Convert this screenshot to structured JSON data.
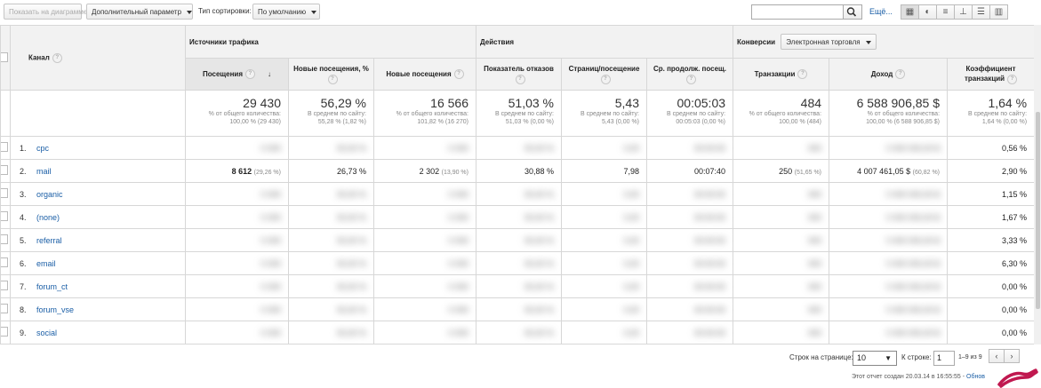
{
  "toolbar": {
    "plot_rows": "Показать на диаграмме",
    "secondary_dimension": "Дополнительный параметр",
    "sort_type_label": "Тип сортировки:",
    "sort_type_value": "По умолчанию",
    "more": "Ещё...",
    "view_icons": [
      "table-view-icon",
      "pie-view-icon",
      "performance-view-icon",
      "comparison-view-icon",
      "term-cloud-view-icon",
      "pivot-view-icon"
    ]
  },
  "groups": {
    "traffic": "Источники трафика",
    "actions": "Действия",
    "conversions": "Конверсии",
    "conversion_select": "Электронная торговля"
  },
  "columns": {
    "channel": "Канал",
    "sessions": "Посещения",
    "new_sessions_pct": "Новые посещения, %",
    "new_sessions": "Новые посещения",
    "bounce": "Показатель отказов",
    "pages": "Страниц/посещение",
    "duration": "Ср. продолж. посещ.",
    "transactions": "Транзакции",
    "revenue": "Доход",
    "conv_rate": "Коэффициент транзакций"
  },
  "totals": {
    "sessions": {
      "big": "29 430",
      "s1": "% от общего количества:",
      "s2": "100,00 % (29 430)"
    },
    "new_sessions_pct": {
      "big": "56,29 %",
      "s1": "В среднем по сайту:",
      "s2": "55,28 % (1,82 %)"
    },
    "new_sessions": {
      "big": "16 566",
      "s1": "% от общего количества:",
      "s2": "101,82 % (16 270)"
    },
    "bounce": {
      "big": "51,03 %",
      "s1": "В среднем по сайту:",
      "s2": "51,03 % (0,00 %)"
    },
    "pages": {
      "big": "5,43",
      "s1": "В среднем по сайту:",
      "s2": "5,43 (0,00 %)"
    },
    "duration": {
      "big": "00:05:03",
      "s1": "В среднем по сайту:",
      "s2": "00:05:03 (0,00 %)"
    },
    "transactions": {
      "big": "484",
      "s1": "% от общего количества:",
      "s2": "100,00 % (484)"
    },
    "revenue": {
      "big": "6 588 906,85 $",
      "s1": "% от общего количества:",
      "s2": "100,00 % (6 588 906,85 $)"
    },
    "conv_rate": {
      "big": "1,64 %",
      "s1": "В среднем по сайту:",
      "s2": "1,64 % (0,00 %)"
    }
  },
  "rows": [
    {
      "num": "1.",
      "channel": "cpc",
      "conv_rate": "0,56 %"
    },
    {
      "num": "2.",
      "channel": "mail",
      "sessions": "8 612",
      "sessions_pct": "(29,26 %)",
      "new_sessions_pct": "26,73 %",
      "new_sessions": "2 302",
      "new_sessions_share": "(13,90 %)",
      "bounce": "30,88 %",
      "pages": "7,98",
      "duration": "00:07:40",
      "transactions": "250",
      "transactions_pct": "(51,65 %)",
      "revenue": "4 007 461,05 $",
      "revenue_pct": "(60,82 %)",
      "conv_rate": "2,90 %"
    },
    {
      "num": "3.",
      "channel": "organic",
      "conv_rate": "1,15 %"
    },
    {
      "num": "4.",
      "channel": "(none)",
      "conv_rate": "1,67 %"
    },
    {
      "num": "5.",
      "channel": "referral",
      "conv_rate": "3,33 %"
    },
    {
      "num": "6.",
      "channel": "email",
      "conv_rate": "6,30 %"
    },
    {
      "num": "7.",
      "channel": "forum_ct",
      "conv_rate": "0,00 %"
    },
    {
      "num": "8.",
      "channel": "forum_vse",
      "conv_rate": "0,00 %"
    },
    {
      "num": "9.",
      "channel": "social",
      "conv_rate": "0,00 %"
    }
  ],
  "pagination": {
    "rows_label": "Строк на странице:",
    "rows_value": "10",
    "goto_label": "К строке:",
    "goto_value": "1",
    "range": "1–9 из 9"
  },
  "footer": {
    "text": "Этот отчет создан 20.03.14 в 16:55:55 - ",
    "link": "Обнов"
  }
}
